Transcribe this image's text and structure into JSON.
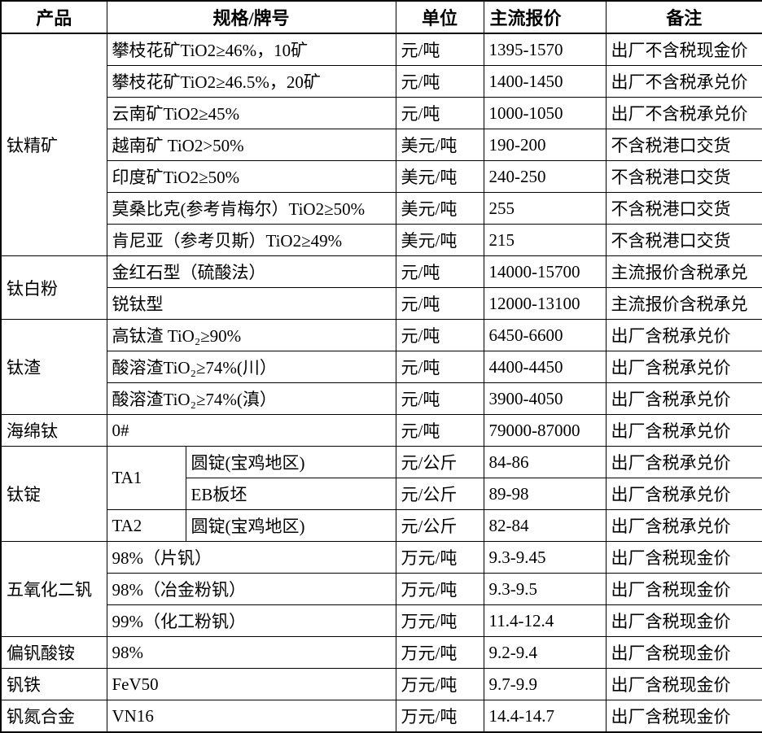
{
  "table": {
    "headers": {
      "product": "产品",
      "spec": "规格/牌号",
      "unit": "单位",
      "price": "主流报价",
      "note": "备注"
    },
    "groups": [
      {
        "product": "钛精矿",
        "rows": [
          {
            "spec": "攀枝花矿TiO2≥46%，10矿",
            "unit": "元/吨",
            "price": "1395-1570",
            "note": "出厂不含税现金价"
          },
          {
            "spec": "攀枝花矿TiO2≥46.5%，20矿",
            "unit": "元/吨",
            "price": "1400-1450",
            "note": "出厂不含税承兑价"
          },
          {
            "spec": "云南矿TiO2≥45%",
            "unit": "元/吨",
            "price": "1000-1050",
            "note": "出厂不含税承兑价"
          },
          {
            "spec": "越南矿 TiO2>50%",
            "unit": "美元/吨",
            "price": "190-200",
            "note": "不含税港口交货"
          },
          {
            "spec": "印度矿TiO2≥50%",
            "unit": "美元/吨",
            "price": "240-250",
            "note": "不含税港口交货"
          },
          {
            "spec": "莫桑比克(参考肯梅尔）TiO2≥50%",
            "unit": "美元/吨",
            "price": "255",
            "note": "不含税港口交货"
          },
          {
            "spec": "肯尼亚（参考贝斯）TiO2≥49%",
            "unit": "美元/吨",
            "price": "215",
            "note": "不含税港口交货"
          }
        ]
      },
      {
        "product": "钛白粉",
        "rows": [
          {
            "spec": "金红石型（硫酸法）",
            "unit": "元/吨",
            "price": "14000-15700",
            "note": "主流报价含税承兑"
          },
          {
            "spec": "锐钛型",
            "unit": "元/吨",
            "price": "12000-13100",
            "note": "主流报价含税承兑"
          }
        ]
      },
      {
        "product": "钛渣",
        "rows": [
          {
            "spec": "高钛渣 TiO₂≥90%",
            "unit": "元/吨",
            "price": "6450-6600",
            "note": "出厂含税承兑价"
          },
          {
            "spec": "酸溶渣TiO₂≥74%(川）",
            "unit": "元/吨",
            "price": "4400-4450",
            "note": "出厂含税承兑价"
          },
          {
            "spec": "酸溶渣TiO₂≥74%(滇）",
            "unit": "元/吨",
            "price": "3900-4050",
            "note": "出厂含税承兑价"
          }
        ]
      },
      {
        "product": "海绵钛",
        "rows": [
          {
            "spec": "0#",
            "unit": "元/吨",
            "price": "79000-87000",
            "note": "出厂含税承兑价"
          }
        ]
      },
      {
        "product": "钛锭",
        "rows": [
          {
            "grade": "TA1",
            "spec": "圆锭(宝鸡地区)",
            "unit": "元/公斤",
            "price": "84-86",
            "note": "出厂含税承兑价"
          },
          {
            "spec": "EB板坯",
            "unit": "元/公斤",
            "price": "89-98",
            "note": "出厂含税承兑价"
          },
          {
            "grade": "TA2",
            "spec": "圆锭(宝鸡地区)",
            "unit": "元/公斤",
            "price": "82-84",
            "note": "出厂含税承兑价"
          }
        ]
      },
      {
        "product": "五氧化二钒",
        "rows": [
          {
            "spec": "98%（片钒）",
            "unit": "万元/吨",
            "price": "9.3-9.45",
            "note": "出厂含税现金价"
          },
          {
            "spec": "98%（冶金粉钒）",
            "unit": "万元/吨",
            "price": "9.3-9.5",
            "note": "出厂含税现金价"
          },
          {
            "spec": "99%（化工粉钒）",
            "unit": "万元/吨",
            "price": "11.4-12.4",
            "note": "出厂含税现金价"
          }
        ]
      },
      {
        "product": "偏钒酸铵",
        "rows": [
          {
            "spec": "98%",
            "unit": "万元/吨",
            "price": "9.2-9.4",
            "note": "出厂含税现金价"
          }
        ]
      },
      {
        "product": "钒铁",
        "rows": [
          {
            "spec": "FeV50",
            "unit": "万元/吨",
            "price": "9.7-9.9",
            "note": "出厂含税现金价"
          }
        ]
      },
      {
        "product": "钒氮合金",
        "rows": [
          {
            "spec": "VN16",
            "unit": "万元/吨",
            "price": "14.4-14.7",
            "note": "出厂含税现金价"
          }
        ]
      }
    ]
  }
}
